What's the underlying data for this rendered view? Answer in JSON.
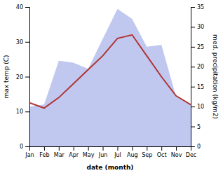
{
  "chart_data": {
    "type": "line",
    "xlabel": "date (month)",
    "ylabel": "max temp (C)",
    "y2label": "med. precipitation (kg/m2)",
    "categories": [
      "Jan",
      "Feb",
      "Mar",
      "Apr",
      "May",
      "Jun",
      "Jul",
      "Aug",
      "Sep",
      "Oct",
      "Nov",
      "Dec"
    ],
    "series": [
      {
        "type": "area",
        "axis": "y2",
        "color": "#c0c8f0",
        "values": [
          10.0,
          10.5,
          21.5,
          21.0,
          19.5,
          27.0,
          34.5,
          32.0,
          25.0,
          25.5,
          12.5,
          10.5
        ]
      },
      {
        "type": "line",
        "color": "#b03535",
        "values": [
          12.5,
          11.0,
          14.0,
          18.0,
          22.0,
          26.0,
          31.0,
          32.0,
          26.0,
          20.0,
          14.5,
          12.0
        ]
      }
    ],
    "ylim": [
      0,
      40
    ],
    "yticks": [
      0,
      10,
      20,
      30,
      40
    ],
    "y2lim": [
      0,
      35
    ],
    "y2ticks": [
      0,
      5,
      10,
      15,
      20,
      25,
      30,
      35
    ],
    "grid": false
  }
}
